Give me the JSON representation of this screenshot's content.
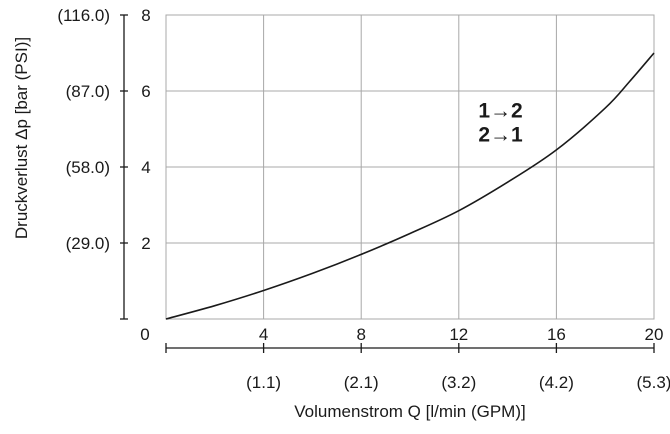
{
  "chart_data": {
    "type": "line",
    "title": "",
    "xlabel": "Volumenstrom Q [l/min (GPM)]",
    "ylabel": "Druckverlust  Δp [bar (PSI)]",
    "xlim": [
      0,
      20
    ],
    "ylim": [
      0,
      8
    ],
    "grid": true,
    "x_ticks": [
      {
        "value": 0,
        "label": "0",
        "secondary": ""
      },
      {
        "value": 4,
        "label": "4",
        "secondary": "(1.1)"
      },
      {
        "value": 8,
        "label": "8",
        "secondary": "(2.1)"
      },
      {
        "value": 12,
        "label": "12",
        "secondary": "(3.2)"
      },
      {
        "value": 16,
        "label": "16",
        "secondary": "(4.2)"
      },
      {
        "value": 20,
        "label": "20",
        "secondary": "(5.3)"
      }
    ],
    "y_ticks": [
      {
        "value": 2,
        "label": "2",
        "secondary": "(29.0)"
      },
      {
        "value": 4,
        "label": "4",
        "secondary": "(58.0)"
      },
      {
        "value": 6,
        "label": "6",
        "secondary": "(87.0)"
      },
      {
        "value": 8,
        "label": "8",
        "secondary": "(116.0)"
      }
    ],
    "series": [
      {
        "x": [
          0,
          2,
          4,
          6,
          8,
          10,
          12,
          14,
          16,
          18,
          19,
          20
        ],
        "y": [
          0,
          0.35,
          0.75,
          1.2,
          1.7,
          2.25,
          2.85,
          3.6,
          4.45,
          5.55,
          6.25,
          7.0
        ]
      }
    ],
    "annotations": [
      "1→2",
      "2→1"
    ],
    "annotation_anchor": {
      "x": 12.8,
      "y": 5.3
    },
    "colors": {
      "line": "#1a1a1a",
      "grid": "#a8a8a8",
      "axis": "#1a1a1a"
    }
  }
}
